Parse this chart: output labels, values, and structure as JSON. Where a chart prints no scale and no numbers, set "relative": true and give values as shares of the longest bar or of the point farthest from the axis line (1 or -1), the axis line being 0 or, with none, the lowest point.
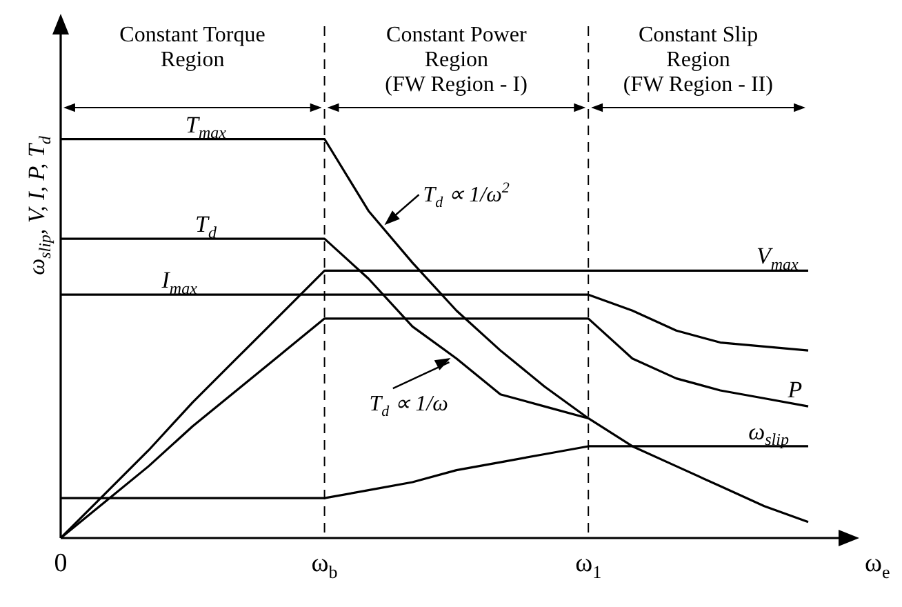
{
  "chart_data": {
    "type": "line",
    "relative": true,
    "xlabel": "ω$_{e}$",
    "ylabel": "ω$_{slip}$, V, I, P, T$_{d}$",
    "legend": false,
    "categories": [
      "0",
      null,
      null,
      null,
      null,
      null,
      "ω$_{b}$",
      null,
      null,
      null,
      null,
      null,
      "ω$_{1}$",
      null,
      null,
      null,
      null,
      null
    ],
    "series": [
      {
        "name": "T$_{max}$",
        "color": "#000000",
        "values": [
          1,
          1,
          1,
          1,
          1,
          1,
          1,
          0.82,
          0.69,
          0.57,
          0.47,
          0.38,
          0.3,
          0.23,
          0.18,
          0.13,
          0.08,
          0.04
        ]
      },
      {
        "name": "T$_{d}$",
        "color": "#000000",
        "values": [
          0.75,
          0.75,
          0.75,
          0.75,
          0.75,
          0.75,
          0.75,
          0.65,
          0.53,
          0.45,
          0.36,
          0.33,
          0.3,
          null,
          null,
          null,
          null,
          null
        ]
      },
      {
        "name": "I$_{max}$",
        "color": "#000000",
        "values": [
          0.61,
          0.61,
          0.61,
          0.61,
          0.61,
          0.61,
          0.61,
          0.61,
          0.61,
          0.61,
          0.61,
          0.61,
          0.61,
          0.57,
          0.52,
          0.49,
          0.48,
          0.47
        ]
      },
      {
        "name": "V$_{max}$",
        "color": "#000000",
        "values": [
          0,
          0.11,
          0.22,
          0.34,
          0.45,
          0.56,
          0.67,
          0.67,
          0.67,
          0.67,
          0.67,
          0.67,
          0.67,
          0.67,
          0.67,
          0.67,
          0.67,
          0.67
        ]
      },
      {
        "name": "P",
        "color": "#000000",
        "values": [
          0,
          0.09,
          0.18,
          0.28,
          0.37,
          0.46,
          0.55,
          0.55,
          0.55,
          0.55,
          0.55,
          0.55,
          0.55,
          0.45,
          0.4,
          0.37,
          0.35,
          0.33
        ]
      },
      {
        "name": "ω$_{slip}$",
        "color": "#000000",
        "values": [
          0.1,
          0.1,
          0.1,
          0.1,
          0.1,
          0.1,
          0.1,
          0.12,
          0.14,
          0.17,
          0.19,
          0.21,
          0.23,
          0.23,
          0.23,
          0.23,
          0.23,
          0.23
        ]
      }
    ],
    "ref_lines": [
      {
        "axis": "x",
        "value": "ω$_{b}$",
        "line_style": "dashed"
      },
      {
        "axis": "x",
        "value": "ω$_{1}$",
        "line_style": "dashed"
      }
    ],
    "annotations": [
      "Constant Torque\nRegion",
      "Constant Power\nRegion\n(FW Region - I)",
      "Constant Slip\nRegion\n(FW Region - II)",
      "T$_{d}$ ∝ 1/ω$^{2}$",
      "T$_{d}$ ∝ 1/ω"
    ]
  }
}
